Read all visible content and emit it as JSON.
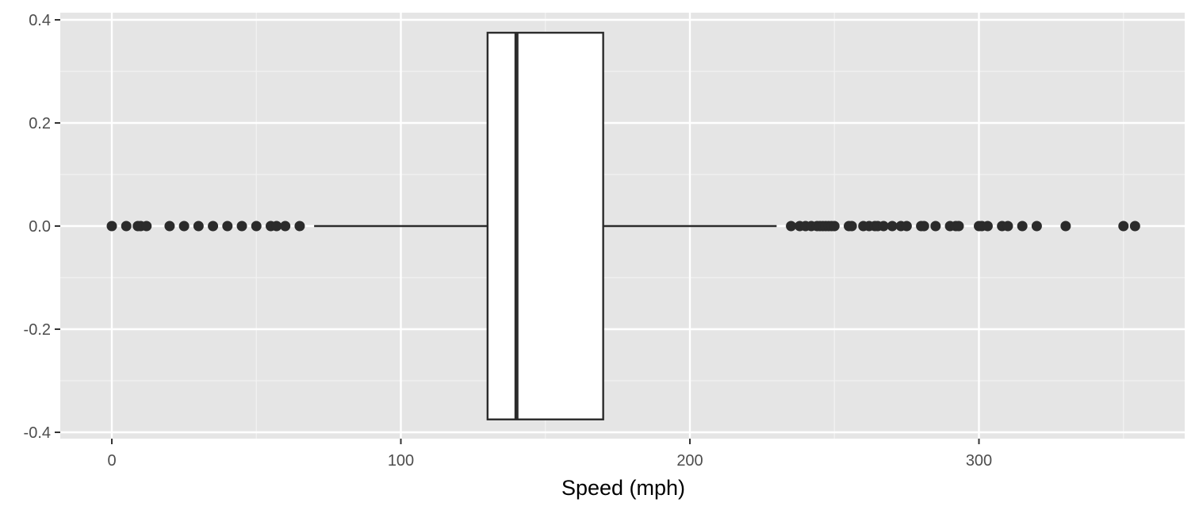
{
  "colors": {
    "panel_background": "#e5e5e5",
    "grid_major": "#ffffff",
    "grid_minor": "#f2f2f2",
    "box_fill": "#ffffff",
    "box_stroke": "#2b2b2b",
    "point_color": "#2b2b2b",
    "tick_color": "#333333"
  },
  "chart_data": {
    "type": "boxplot",
    "orientation": "horizontal",
    "title": "",
    "xlabel": "Speed (mph)",
    "ylabel": "",
    "xlim": [
      -17,
      372
    ],
    "ylim": [
      -0.4,
      0.4
    ],
    "x_ticks": [
      0,
      100,
      200,
      300
    ],
    "x_tick_labels": [
      "0",
      "100",
      "200",
      "300"
    ],
    "y_ticks": [
      0.4,
      0.2,
      0.0,
      -0.2,
      -0.4
    ],
    "y_tick_labels": [
      "0.4",
      "0.2",
      "0.0",
      "-0.2",
      "-0.4"
    ],
    "grid": true,
    "box": {
      "y_center": 0,
      "y_halfwidth": 0.375,
      "lower_whisker": 70,
      "q1": 130,
      "median": 140,
      "q3": 170,
      "upper_whisker": 230
    },
    "outliers": [
      0,
      5,
      9,
      10,
      12,
      20,
      25,
      30,
      35,
      40,
      45,
      50,
      55,
      57,
      60,
      65,
      235,
      238,
      240,
      242,
      244,
      245,
      246,
      247,
      248,
      249,
      250,
      255,
      256,
      260,
      262,
      264,
      265,
      267,
      270,
      273,
      275,
      280,
      281,
      285,
      290,
      292,
      293,
      300,
      301,
      303,
      308,
      310,
      315,
      320,
      330,
      350,
      354
    ]
  }
}
